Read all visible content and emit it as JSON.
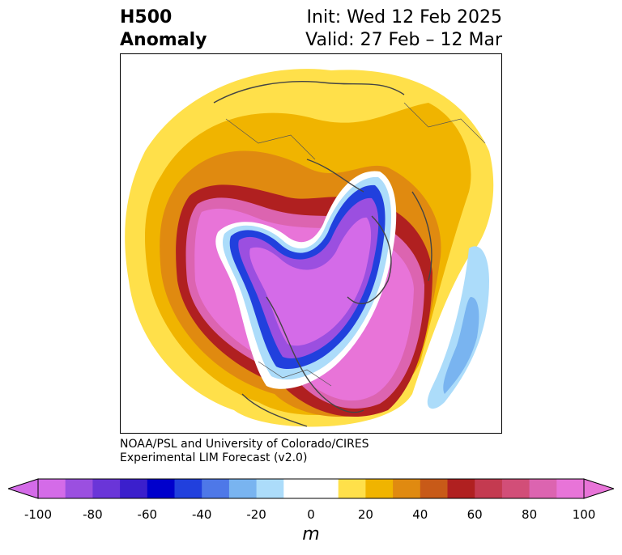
{
  "title": {
    "left_line1": "H500",
    "left_line2": "Anomaly",
    "right_line1": "Init: Wed 12 Feb 2025",
    "right_line2": "Valid: 27 Feb – 12 Mar"
  },
  "credit": {
    "line1": "NOAA/PSL and University of Colorado/CIRES",
    "line2": "Experimental LIM Forecast (v2.0)"
  },
  "colorbar": {
    "unit": "m",
    "ticks": [
      "-100",
      "-80",
      "-60",
      "-40",
      "-20",
      "0",
      "20",
      "40",
      "60",
      "80",
      "100"
    ],
    "colors": [
      "#d46be8",
      "#9b4fe0",
      "#6a35d8",
      "#3b1fcc",
      "#0000cc",
      "#2140dd",
      "#4e78e8",
      "#79b4f0",
      "#acdcfa",
      "#ffffff",
      "#ffffff",
      "#ffe04a",
      "#f0b400",
      "#e08a10",
      "#c85a18",
      "#b02020",
      "#c43a50",
      "#d24e78",
      "#dc64b0",
      "#e874d8"
    ]
  },
  "map": {
    "projection": "north-polar-stereographic",
    "field": "500 hPa geopotential height anomaly"
  }
}
